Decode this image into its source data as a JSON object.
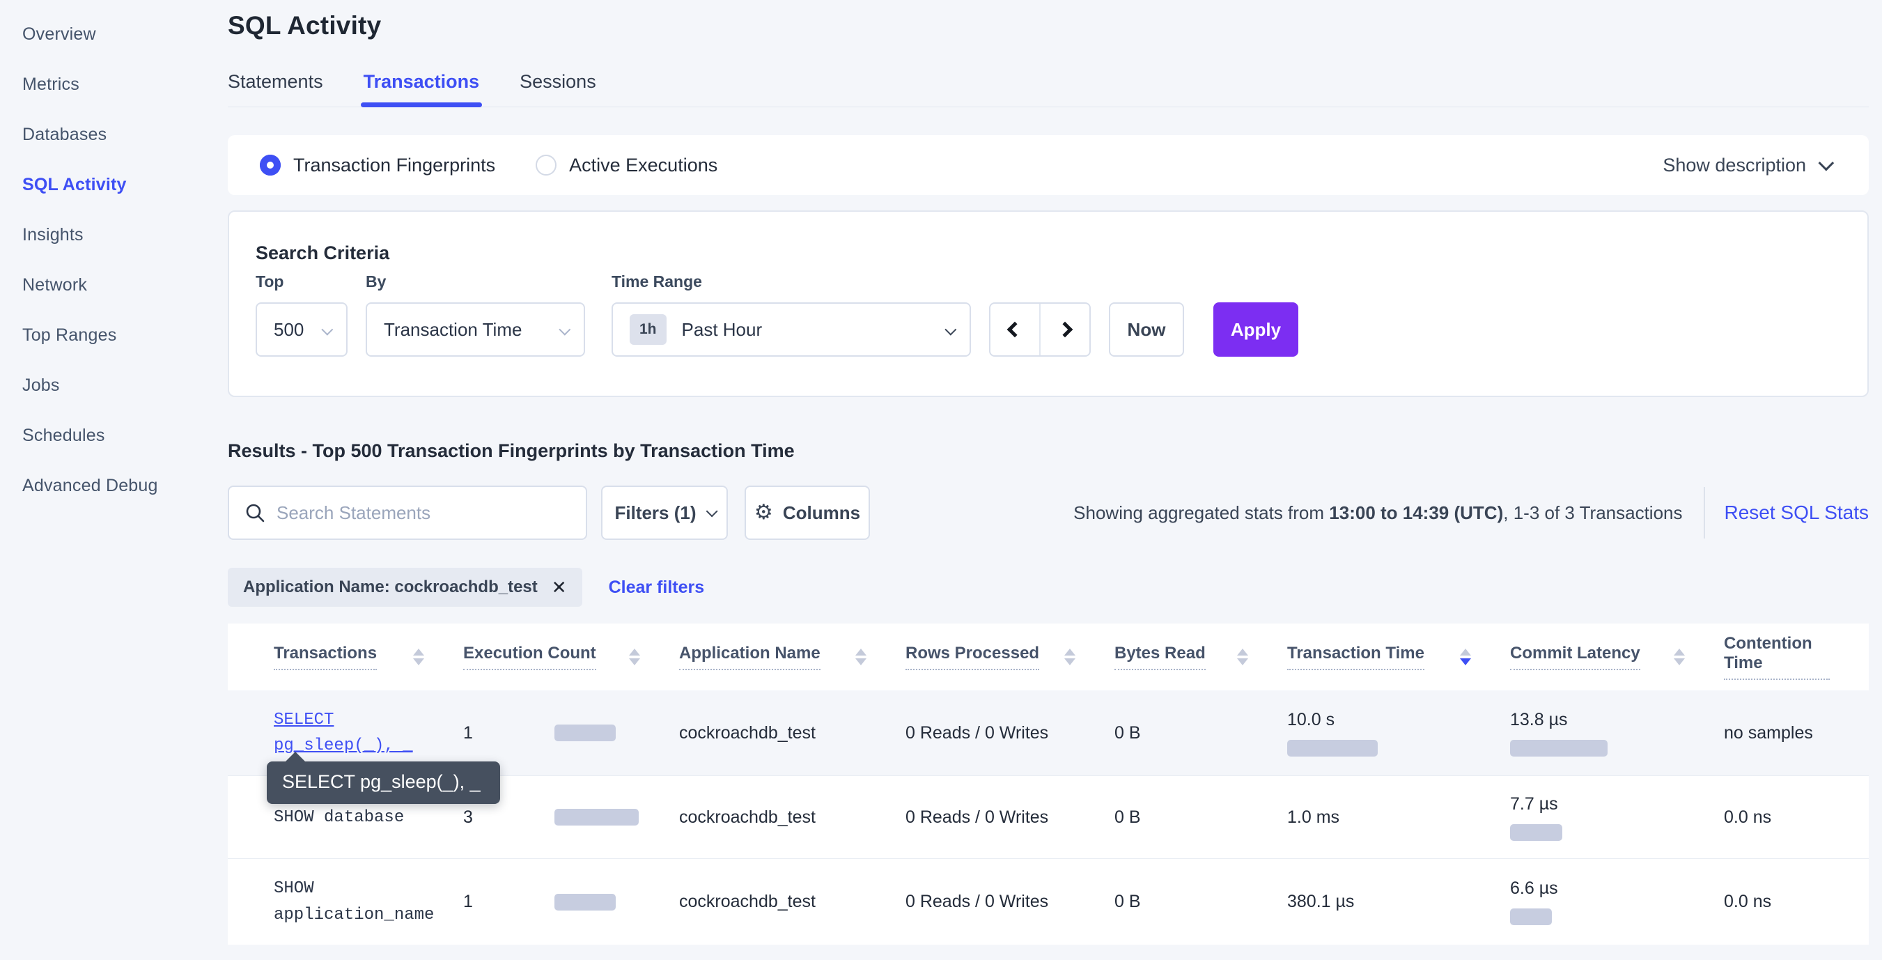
{
  "colors": {
    "accent_blue": "#3e4ff4",
    "apply_purple": "#7c2ef2",
    "page_background": "#f4f6fa",
    "bar_fill": "#c7cde0",
    "tooltip_background": "#46505f",
    "text_dark": "#242c3a"
  },
  "sidebar": {
    "items": [
      {
        "label": "Overview",
        "active": false
      },
      {
        "label": "Metrics",
        "active": false
      },
      {
        "label": "Databases",
        "active": false
      },
      {
        "label": "SQL Activity",
        "active": true
      },
      {
        "label": "Insights",
        "active": false
      },
      {
        "label": "Network",
        "active": false
      },
      {
        "label": "Top Ranges",
        "active": false
      },
      {
        "label": "Jobs",
        "active": false
      },
      {
        "label": "Schedules",
        "active": false
      },
      {
        "label": "Advanced Debug",
        "active": false
      }
    ]
  },
  "header": {
    "title": "SQL Activity",
    "tabs": [
      {
        "label": "Statements",
        "active": false
      },
      {
        "label": "Transactions",
        "active": true
      },
      {
        "label": "Sessions",
        "active": false
      }
    ]
  },
  "view_toggle": {
    "options": [
      {
        "label": "Transaction Fingerprints",
        "selected": true
      },
      {
        "label": "Active Executions",
        "selected": false
      }
    ],
    "show_description_label": "Show description"
  },
  "search_criteria": {
    "title": "Search Criteria",
    "top": {
      "label": "Top",
      "value": "500"
    },
    "by": {
      "label": "By",
      "value": "Transaction Time"
    },
    "time_range": {
      "label": "Time Range",
      "badge": "1h",
      "value": "Past Hour"
    },
    "now_label": "Now",
    "apply_label": "Apply"
  },
  "results": {
    "heading": "Results - Top 500 Transaction Fingerprints by Transaction Time",
    "search_placeholder": "Search Statements",
    "filters_label": "Filters (1)",
    "columns_label": "Columns",
    "stats_prefix": "Showing aggregated stats from ",
    "stats_range": "13:00 to 14:39 (UTC)",
    "stats_suffix": ", 1-3 of 3 Transactions",
    "reset_label": "Reset SQL Stats",
    "filter_chip": "Application Name: cockroachdb_test",
    "chip_close": "✕",
    "clear_filters": "Clear filters"
  },
  "tooltip": {
    "text": "SELECT pg_sleep(_), _"
  },
  "table": {
    "columns": [
      {
        "label": "Transactions",
        "sort": "none"
      },
      {
        "label": "Execution Count",
        "sort": "none"
      },
      {
        "label": "Application Name",
        "sort": "none"
      },
      {
        "label": "Rows Processed",
        "sort": "none"
      },
      {
        "label": "Bytes Read",
        "sort": "none"
      },
      {
        "label": "Transaction Time",
        "sort": "desc"
      },
      {
        "label": "Commit Latency",
        "sort": "none"
      },
      {
        "label": "Contention Time",
        "sort": "none"
      }
    ],
    "rows": [
      {
        "query": "SELECT pg_sleep(_), _",
        "is_link": true,
        "exec_count": "1",
        "exec_bar": 88,
        "app_name": "cockroachdb_test",
        "rows_processed": "0 Reads / 0 Writes",
        "bytes_read": "0 B",
        "txn_time": "10.0 s",
        "txn_bar": 130,
        "commit_latency": "13.8 µs",
        "commit_bar": 140,
        "contention_time": "no samples"
      },
      {
        "query": "SHOW database",
        "is_link": false,
        "exec_count": "3",
        "exec_bar": 121,
        "app_name": "cockroachdb_test",
        "rows_processed": "0 Reads / 0 Writes",
        "bytes_read": "0 B",
        "txn_time": "1.0 ms",
        "txn_bar": 0,
        "commit_latency": "7.7 µs",
        "commit_bar": 75,
        "contention_time": "0.0 ns"
      },
      {
        "query": "SHOW application_name",
        "is_link": false,
        "exec_count": "1",
        "exec_bar": 88,
        "app_name": "cockroachdb_test",
        "rows_processed": "0 Reads / 0 Writes",
        "bytes_read": "0 B",
        "txn_time": "380.1 µs",
        "txn_bar": 0,
        "commit_latency": "6.6 µs",
        "commit_bar": 60,
        "contention_time": "0.0 ns"
      }
    ]
  }
}
